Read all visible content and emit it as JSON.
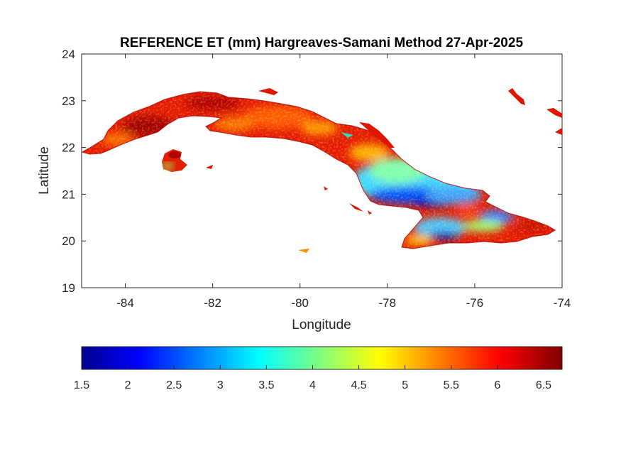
{
  "figure": {
    "title": "REFERENCE ET (mm) Hargreaves-Samani Method  27-Apr-2025",
    "xlabel": "Longitude",
    "ylabel": "Latitude"
  },
  "map": {
    "region": "Cuba",
    "xlim": [
      -85,
      -74
    ],
    "ylim": [
      19,
      24
    ],
    "xticks": [
      -84,
      -82,
      -80,
      -78,
      -76,
      -74
    ],
    "yticks": [
      19,
      20,
      21,
      22,
      23,
      24
    ],
    "grid": false,
    "colormap": "jet"
  },
  "colorbar": {
    "placement": "bottom",
    "range": [
      1.5,
      6.7
    ],
    "ticks": [
      "1.5",
      "2",
      "2.5",
      "3",
      "3.5",
      "4",
      "4.5",
      "5",
      "5.5",
      "6",
      "6.5"
    ],
    "colors": [
      "#00008f",
      "#0000ff",
      "#00ffff",
      "#ffff00",
      "#ff0000",
      "#800000"
    ]
  },
  "chart_data": {
    "type": "heatmap",
    "title": "REFERENCE ET (mm) Hargreaves-Samani Method  27-Apr-2025",
    "xlabel": "Longitude",
    "ylabel": "Latitude",
    "xlim": [
      -85,
      -74
    ],
    "ylim": [
      19,
      24
    ],
    "value_range": [
      1.5,
      6.7
    ],
    "approx_regions": [
      {
        "area": "western Cuba (lon -85 to -80)",
        "value": 6.2
      },
      {
        "area": "central Cuba (lon -80 to -78.5)",
        "value": 5.8
      },
      {
        "area": "Camaguey plains (lon -78.5 to -76)",
        "value": 3.3
      },
      {
        "area": "Cauto basin (lon -78 to -76.5, lat ~20.8)",
        "value": 2.3
      },
      {
        "area": "Sierra Maestra (lon -77.3 to -76.3, lat ~20)",
        "value": 2.0
      },
      {
        "area": "eastern tip (lon -76 to -74.2)",
        "value": 5.6
      },
      {
        "area": "Isla de la Juventud (lon -83.2 to -82.6, lat ~21.7)",
        "value": 5.8
      }
    ]
  }
}
